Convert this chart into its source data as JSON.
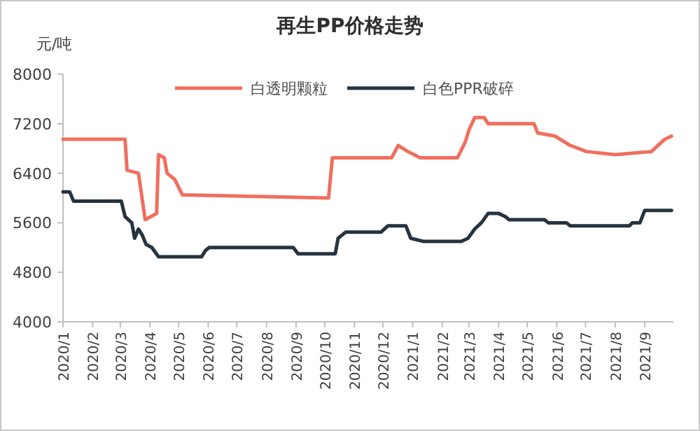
{
  "chart_data": {
    "type": "line",
    "title": "再生PP价格走势",
    "ylabel": "元/吨",
    "legend": "top",
    "grid": false,
    "line_style": "solid",
    "marker": "none",
    "xlim": [
      "2020-01",
      "2021-10"
    ],
    "xticks": [
      {
        "value": "2020-01",
        "label": "2020/1"
      },
      {
        "value": "2020-02",
        "label": "2020/2"
      },
      {
        "value": "2020-03",
        "label": "2020/3"
      },
      {
        "value": "2020-04",
        "label": "2020/4"
      },
      {
        "value": "2020-05",
        "label": "2020/5"
      },
      {
        "value": "2020-06",
        "label": "2020/6"
      },
      {
        "value": "2020-07",
        "label": "2020/7"
      },
      {
        "value": "2020-08",
        "label": "2020/8"
      },
      {
        "value": "2020-09",
        "label": "2020/9"
      },
      {
        "value": "2020-10",
        "label": "2020/10"
      },
      {
        "value": "2020-11",
        "label": "2020/11"
      },
      {
        "value": "2020-12",
        "label": "2020/12"
      },
      {
        "value": "2021-01",
        "label": "2021/1"
      },
      {
        "value": "2021-02",
        "label": "2021/2"
      },
      {
        "value": "2021-03",
        "label": "2021/3"
      },
      {
        "value": "2021-04",
        "label": "2021/4"
      },
      {
        "value": "2021-05",
        "label": "2021/5"
      },
      {
        "value": "2021-06",
        "label": "2021/6"
      },
      {
        "value": "2021-07",
        "label": "2021/7"
      },
      {
        "value": "2021-08",
        "label": "2021/8"
      },
      {
        "value": "2021-09",
        "label": "2021/9"
      }
    ],
    "ylim": [
      4000,
      8000
    ],
    "yticks": [
      4000,
      4800,
      5600,
      6400,
      7200,
      8000
    ],
    "series": [
      {
        "name": "白透明颗粒",
        "color": "#ef6f5e",
        "x": [
          "2020-01-01",
          "2020-03-06",
          "2020-03-08",
          "2020-03-20",
          "2020-03-27",
          "2020-04-08",
          "2020-04-10",
          "2020-04-16",
          "2020-04-19",
          "2020-04-27",
          "2020-05-05",
          "2020-10-05",
          "2020-10-09",
          "2020-12-10",
          "2020-12-17",
          "2020-12-27",
          "2021-01-09",
          "2021-02-17",
          "2021-02-25",
          "2021-03-01",
          "2021-03-07",
          "2021-03-17",
          "2021-03-21",
          "2021-05-08",
          "2021-05-12",
          "2021-05-30",
          "2021-06-15",
          "2021-07-02",
          "2021-08-01",
          "2021-09-08",
          "2021-09-22",
          "2021-09-29"
        ],
        "values": [
          6950,
          6950,
          6450,
          6400,
          5650,
          5750,
          6700,
          6650,
          6400,
          6300,
          6050,
          6000,
          6650,
          6650,
          6850,
          6750,
          6650,
          6650,
          6900,
          7100,
          7300,
          7300,
          7200,
          7200,
          7050,
          7000,
          6850,
          6750,
          6700,
          6750,
          6950,
          7000
        ]
      },
      {
        "name": "白色PPR破碎",
        "color": "#25343f",
        "x": [
          "2020-01-01",
          "2020-01-08",
          "2020-01-12",
          "2020-03-02",
          "2020-03-06",
          "2020-03-13",
          "2020-03-16",
          "2020-03-20",
          "2020-03-24",
          "2020-03-28",
          "2020-04-03",
          "2020-04-10",
          "2020-05-25",
          "2020-05-29",
          "2020-06-02",
          "2020-08-29",
          "2020-09-03",
          "2020-10-12",
          "2020-10-15",
          "2020-10-23",
          "2020-11-04",
          "2020-11-29",
          "2020-12-06",
          "2020-12-25",
          "2020-12-30",
          "2021-01-12",
          "2021-02-21",
          "2021-02-28",
          "2021-03-07",
          "2021-03-14",
          "2021-03-21",
          "2021-04-01",
          "2021-04-08",
          "2021-04-12",
          "2021-05-19",
          "2021-05-23",
          "2021-06-11",
          "2021-06-15",
          "2021-08-16",
          "2021-08-19",
          "2021-08-27",
          "2021-09-01",
          "2021-09-29"
        ],
        "values": [
          6100,
          6100,
          5950,
          5950,
          5700,
          5600,
          5350,
          5500,
          5400,
          5250,
          5200,
          5050,
          5050,
          5150,
          5200,
          5200,
          5100,
          5100,
          5350,
          5450,
          5450,
          5450,
          5550,
          5550,
          5350,
          5300,
          5300,
          5350,
          5500,
          5600,
          5750,
          5750,
          5700,
          5650,
          5650,
          5600,
          5600,
          5550,
          5550,
          5600,
          5600,
          5800,
          5800
        ]
      }
    ]
  }
}
